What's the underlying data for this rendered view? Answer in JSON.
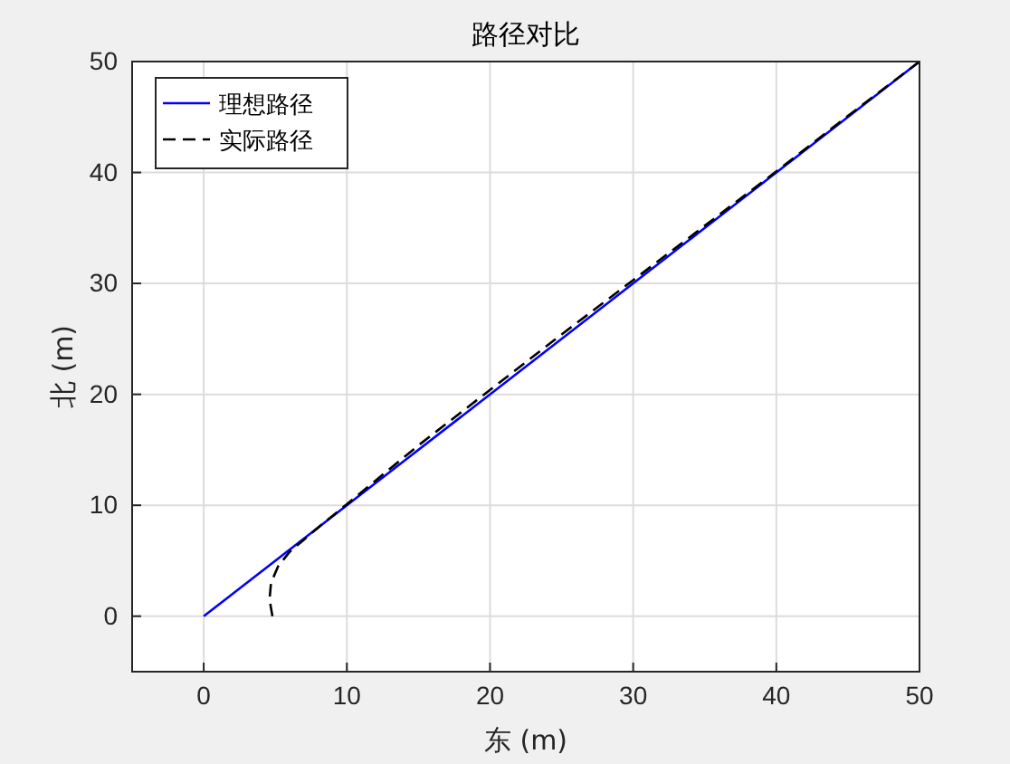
{
  "chart_data": {
    "type": "line",
    "title": "路径对比",
    "xlabel": "东 (m)",
    "ylabel": "北 (m)",
    "xlim": [
      -5,
      50
    ],
    "ylim": [
      -5,
      50
    ],
    "xticks": [
      0,
      10,
      20,
      30,
      40,
      50
    ],
    "yticks": [
      0,
      10,
      20,
      30,
      40,
      50
    ],
    "grid": true,
    "legend": "top left",
    "series": [
      {
        "name": "理想路径",
        "color": "#0000ff",
        "line_style": "solid",
        "x": [
          0,
          50
        ],
        "values": [
          0,
          50
        ]
      },
      {
        "name": "实际路径",
        "color": "#000000",
        "line_style": "dashed",
        "x": [
          4.8,
          4.6,
          4.7,
          5.2,
          6,
          7,
          8,
          10,
          15,
          20,
          25,
          30,
          35,
          40,
          45,
          50
        ],
        "values": [
          0,
          1.5,
          3,
          4.5,
          5.8,
          6.9,
          8,
          10.1,
          15.4,
          20.4,
          25.4,
          30.3,
          35.2,
          40.1,
          45.1,
          50
        ]
      }
    ]
  }
}
